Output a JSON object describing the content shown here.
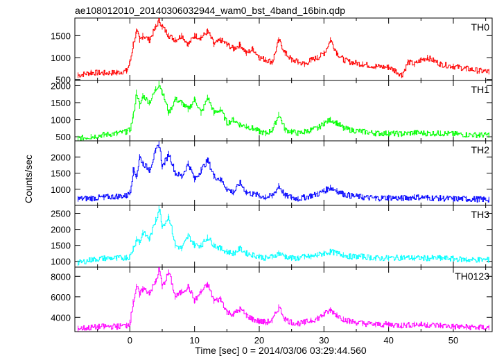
{
  "chart_data": {
    "type": "line",
    "title": "ae108012010_20140306032944_wam0_bst_4band_16bin.qdp",
    "xlabel": "Time [sec] 0 = 2014/03/06 03:29:44.560",
    "ylabel": "Counts/sec",
    "xlim": [
      -8.5,
      56
    ],
    "xticks": [
      0,
      10,
      20,
      30,
      40,
      50
    ],
    "xticklabels": [
      "0",
      "10",
      "20",
      "30",
      "40",
      "50"
    ],
    "panels": [
      {
        "name": "TH0",
        "color": "#ff0000",
        "ylim": [
          480,
          1900
        ],
        "yticks": [
          500,
          1000,
          1500
        ],
        "yticklabels": [
          "500",
          "1000",
          "1500"
        ],
        "x": [
          -8,
          -6,
          -4,
          -2,
          -0.5,
          0,
          0.5,
          1,
          1.5,
          2,
          3,
          4,
          4.5,
          5,
          6,
          7,
          8,
          9,
          10,
          11,
          12,
          13,
          14,
          15,
          16,
          17,
          18,
          19,
          20,
          21,
          22,
          23,
          24,
          25,
          26,
          27,
          28,
          29,
          30,
          31,
          32,
          33,
          34,
          36,
          38,
          40,
          41,
          42,
          43,
          44,
          45,
          46,
          48,
          50,
          52,
          54,
          55.5
        ],
        "y": [
          600,
          660,
          650,
          660,
          700,
          900,
          1300,
          1600,
          1400,
          1500,
          1400,
          1700,
          1850,
          1700,
          1500,
          1400,
          1500,
          1300,
          1500,
          1450,
          1600,
          1300,
          1400,
          1300,
          1200,
          1300,
          1100,
          1200,
          1000,
          950,
          900,
          1400,
          1100,
          950,
          900,
          850,
          950,
          1000,
          1100,
          1400,
          1100,
          950,
          900,
          850,
          800,
          780,
          700,
          600,
          900,
          850,
          950,
          1000,
          850,
          800,
          750,
          700,
          680
        ]
      },
      {
        "name": "TH1",
        "color": "#00ff00",
        "ylim": [
          380,
          2150
        ],
        "yticks": [
          500,
          1000,
          1500,
          2000
        ],
        "yticklabels": [
          "500",
          "1000",
          "1500",
          "2000"
        ],
        "x": [
          -8,
          -6,
          -4,
          -2,
          -0.5,
          0,
          0.5,
          1,
          1.5,
          2,
          3,
          4,
          4.5,
          5,
          6,
          7,
          8,
          9,
          10,
          11,
          12,
          13,
          14,
          15,
          16,
          17,
          18,
          19,
          20,
          21,
          22,
          23,
          24,
          25,
          26,
          27,
          28,
          29,
          30,
          31,
          32,
          33,
          34,
          36,
          38,
          40,
          42,
          44,
          46,
          48,
          50,
          52,
          54,
          55.5
        ],
        "y": [
          450,
          500,
          560,
          600,
          650,
          700,
          1100,
          1800,
          1400,
          1700,
          1500,
          1900,
          2050,
          1800,
          1200,
          1600,
          1500,
          1300,
          1600,
          1200,
          1650,
          1200,
          1300,
          900,
          1000,
          850,
          800,
          750,
          650,
          600,
          700,
          1150,
          700,
          650,
          600,
          650,
          700,
          750,
          900,
          1000,
          900,
          750,
          700,
          650,
          600,
          600,
          580,
          620,
          600,
          600,
          580,
          560,
          550,
          550
        ]
      },
      {
        "name": "TH2",
        "color": "#0000ff",
        "ylim": [
          500,
          2500
        ],
        "yticks": [
          1000,
          1500,
          2000
        ],
        "yticklabels": [
          "1000",
          "1500",
          "2000"
        ],
        "x": [
          -8,
          -6,
          -4,
          -2,
          -0.5,
          0,
          0.5,
          1,
          1.5,
          2,
          3,
          4,
          4.5,
          5,
          6,
          7,
          8,
          9,
          10,
          11,
          12,
          13,
          14,
          15,
          16,
          17,
          18,
          19,
          20,
          21,
          22,
          23,
          24,
          25,
          26,
          27,
          28,
          29,
          30,
          31,
          32,
          33,
          34,
          36,
          38,
          40,
          42,
          44,
          46,
          48,
          50,
          52,
          54,
          55.5
        ],
        "y": [
          700,
          720,
          750,
          780,
          800,
          900,
          1600,
          1400,
          2000,
          1800,
          1600,
          2200,
          2400,
          1700,
          2100,
          1500,
          1400,
          1800,
          1300,
          1600,
          1900,
          1400,
          1300,
          1000,
          900,
          1200,
          900,
          850,
          800,
          750,
          800,
          1100,
          800,
          750,
          700,
          750,
          800,
          850,
          950,
          1050,
          950,
          850,
          800,
          750,
          720,
          740,
          720,
          760,
          740,
          720,
          700,
          700,
          690,
          680
        ]
      },
      {
        "name": "TH3",
        "color": "#00ffff",
        "ylim": [
          820,
          2750
        ],
        "yticks": [
          1000,
          1500,
          2000,
          2500
        ],
        "yticklabels": [
          "1000",
          "1500",
          "2000",
          "2500"
        ],
        "x": [
          -8,
          -6,
          -4,
          -2,
          -0.5,
          0,
          0.5,
          1,
          1.5,
          2,
          3,
          4,
          4.5,
          5,
          6,
          7,
          8,
          9,
          10,
          11,
          12,
          13,
          14,
          15,
          16,
          17,
          18,
          19,
          20,
          21,
          22,
          23,
          24,
          25,
          26,
          27,
          28,
          29,
          30,
          31,
          32,
          33,
          34,
          36,
          38,
          40,
          42,
          44,
          46,
          48,
          50,
          52,
          54,
          55.5
        ],
        "y": [
          950,
          1050,
          1100,
          1100,
          1120,
          1150,
          1400,
          1700,
          1600,
          1900,
          1700,
          2300,
          2650,
          2100,
          2400,
          1500,
          1400,
          1800,
          1500,
          1500,
          1750,
          1500,
          1400,
          1300,
          1250,
          1400,
          1250,
          1200,
          1150,
          1100,
          1150,
          1250,
          1150,
          1100,
          1100,
          1150,
          1150,
          1200,
          1250,
          1300,
          1250,
          1200,
          1150,
          1150,
          1100,
          1100,
          1120,
          1100,
          1100,
          1100,
          1080,
          1050,
          1050,
          1050
        ]
      },
      {
        "name": "TH0123",
        "color": "#ff00ff",
        "ylim": [
          2600,
          8900
        ],
        "yticks": [
          4000,
          6000,
          8000
        ],
        "yticklabels": [
          "4000",
          "6000",
          "8000"
        ],
        "x": [
          -8,
          -6,
          -4,
          -2,
          -0.5,
          0,
          0.5,
          1,
          1.5,
          2,
          3,
          4,
          4.5,
          5,
          6,
          7,
          8,
          9,
          10,
          11,
          12,
          13,
          14,
          15,
          16,
          17,
          18,
          19,
          20,
          21,
          22,
          23,
          24,
          25,
          26,
          27,
          28,
          29,
          30,
          31,
          32,
          33,
          34,
          36,
          38,
          40,
          42,
          44,
          46,
          48,
          50,
          52,
          54,
          55.5
        ],
        "y": [
          2900,
          3000,
          3100,
          3100,
          3200,
          3500,
          5500,
          7000,
          6200,
          6800,
          6400,
          7500,
          8700,
          7000,
          8400,
          6000,
          6500,
          7000,
          5600,
          6500,
          7200,
          5600,
          5800,
          4500,
          4300,
          4800,
          4200,
          3800,
          3600,
          3500,
          3700,
          5000,
          3800,
          3500,
          3400,
          3500,
          3700,
          3900,
          4300,
          4700,
          4200,
          3800,
          3600,
          3400,
          3300,
          3300,
          3200,
          3300,
          3250,
          3200,
          3100,
          3050,
          3000,
          3000
        ]
      }
    ]
  }
}
